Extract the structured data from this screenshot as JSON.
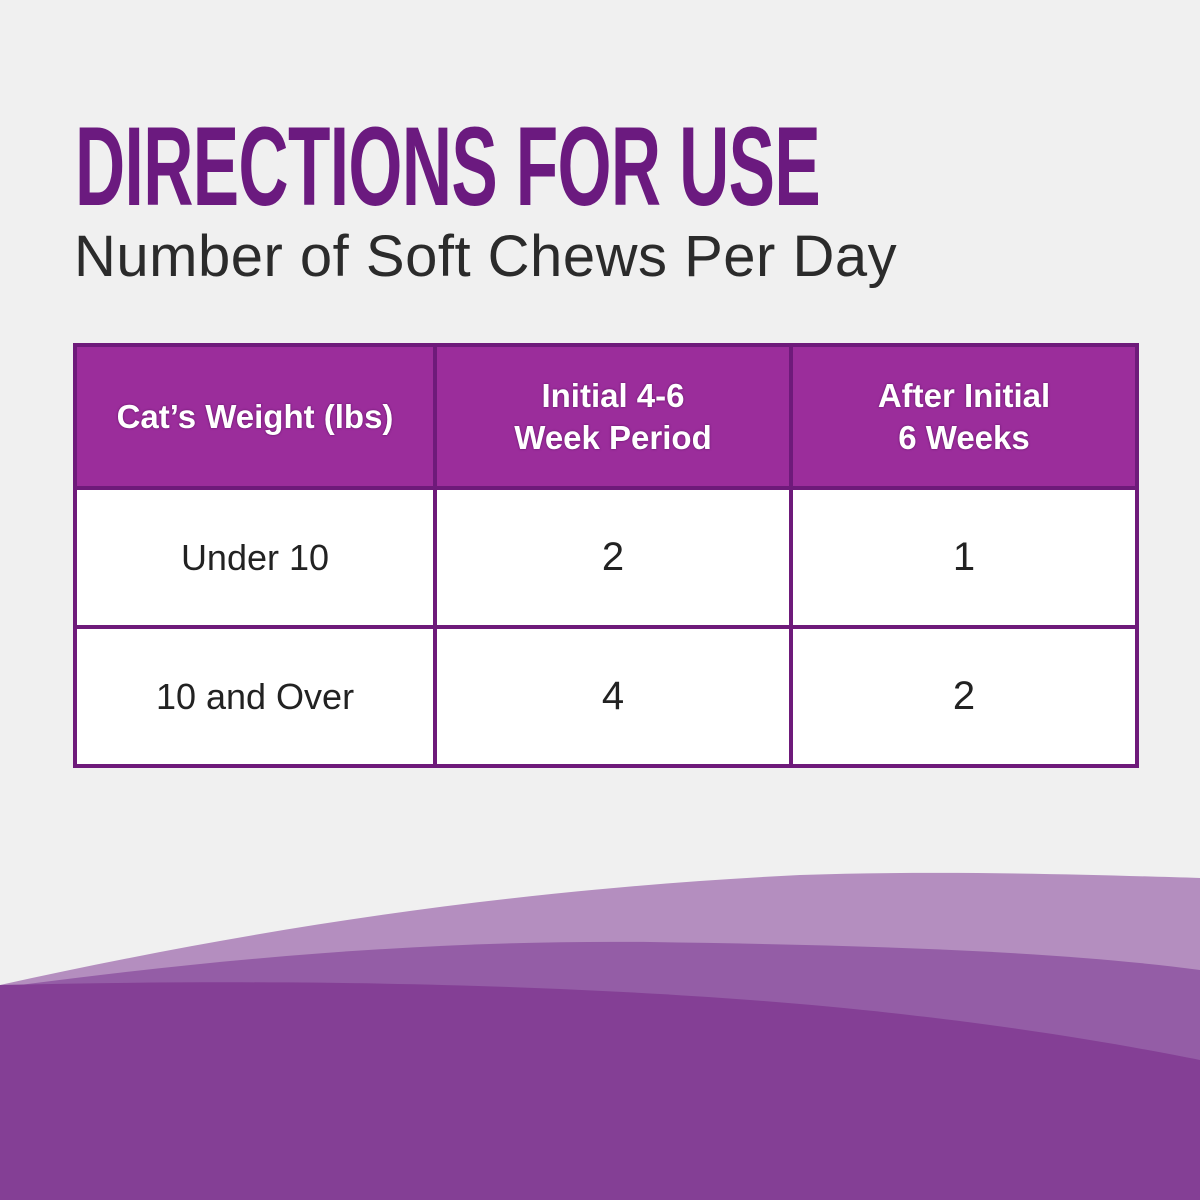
{
  "title": "DIRECTIONS FOR USE",
  "subtitle": "Number of Soft Chews Per Day",
  "table": {
    "headers": [
      "Cat’s Weight (lbs)",
      "Initial 4-6\nWeek Period",
      "After Initial\n6 Weeks"
    ],
    "header_lines": [
      [
        "Cat’s Weight (lbs)"
      ],
      [
        "Initial 4-6",
        "Week Period"
      ],
      [
        "After Initial",
        "6 Weeks"
      ]
    ],
    "rows": [
      [
        "Under 10",
        "2",
        "1"
      ],
      [
        "10 and Over",
        "4",
        "2"
      ]
    ]
  },
  "colors": {
    "title": "#6b1a7f",
    "header_bg": "#9b2d9b",
    "border": "#6e1a7a",
    "wave_light": "#b48ebf",
    "wave_mid": "#945da6",
    "wave_dark": "#843f95",
    "background": "#f0f0f0"
  }
}
